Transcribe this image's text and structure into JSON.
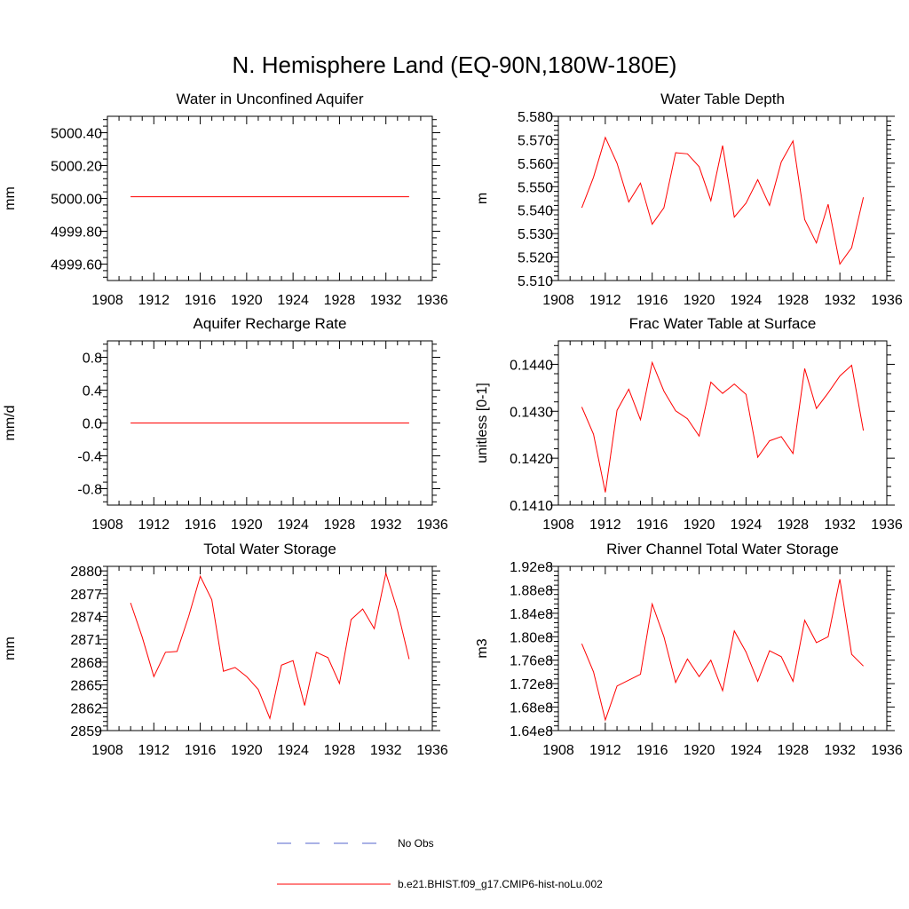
{
  "figure_title": "N. Hemisphere Land (EQ-90N,180W-180E)",
  "legend": {
    "entries": [
      {
        "label": "No Obs",
        "color": "#5566cc",
        "style": "dashed"
      },
      {
        "label": "b.e21.BHIST.f09_g17.CMIP6-hist-noLu.002",
        "color": "#ff0000",
        "style": "solid"
      }
    ]
  },
  "chart_data": [
    {
      "type": "line",
      "title": "Water in Unconfined Aquifer",
      "ylabel": "mm",
      "xlim": [
        1908,
        1936
      ],
      "ylim": [
        4999.5,
        5000.5
      ],
      "xticks": [
        1908,
        1912,
        1916,
        1920,
        1924,
        1928,
        1932,
        1936
      ],
      "xtick_labels": [
        "1908",
        "1912",
        "1916",
        "1920",
        "1924",
        "1928",
        "1932",
        "1936"
      ],
      "yticks": [
        4999.6,
        4999.8,
        5000.0,
        5000.2,
        5000.4
      ],
      "ytick_labels": [
        "4999.60",
        "4999.80",
        "5000.00",
        "5000.20",
        "5000.40"
      ],
      "series": [
        {
          "color": "#ff0000",
          "x": [
            1910,
            1934
          ],
          "y": [
            5000.01,
            5000.01
          ]
        }
      ]
    },
    {
      "type": "line",
      "title": "Water Table Depth",
      "ylabel": "m",
      "xlim": [
        1908,
        1936
      ],
      "ylim": [
        5.51,
        5.58
      ],
      "xticks": [
        1908,
        1912,
        1916,
        1920,
        1924,
        1928,
        1932,
        1936
      ],
      "xtick_labels": [
        "1908",
        "1912",
        "1916",
        "1920",
        "1924",
        "1928",
        "1932",
        "1936"
      ],
      "yticks": [
        5.51,
        5.52,
        5.53,
        5.54,
        5.55,
        5.56,
        5.57,
        5.58
      ],
      "ytick_labels": [
        "5.510",
        "5.520",
        "5.530",
        "5.540",
        "5.550",
        "5.560",
        "5.570",
        "5.580"
      ],
      "series": [
        {
          "color": "#ff0000",
          "x": [
            1910,
            1911,
            1912,
            1913,
            1914,
            1915,
            1916,
            1917,
            1918,
            1919,
            1920,
            1921,
            1922,
            1923,
            1924,
            1925,
            1926,
            1927,
            1928,
            1929,
            1930,
            1931,
            1932,
            1933,
            1934
          ],
          "y": [
            5.541,
            5.554,
            5.571,
            5.56,
            5.5435,
            5.5515,
            5.534,
            5.541,
            5.5645,
            5.564,
            5.5585,
            5.544,
            5.5675,
            5.537,
            5.543,
            5.553,
            5.542,
            5.5605,
            5.5695,
            5.536,
            5.526,
            5.5425,
            5.517,
            5.524,
            5.5455
          ]
        }
      ]
    },
    {
      "type": "line",
      "title": "Aquifer Recharge Rate",
      "ylabel": "mm/d",
      "xlim": [
        1908,
        1936
      ],
      "ylim": [
        -1.0,
        1.0
      ],
      "xticks": [
        1908,
        1912,
        1916,
        1920,
        1924,
        1928,
        1932,
        1936
      ],
      "xtick_labels": [
        "1908",
        "1912",
        "1916",
        "1920",
        "1924",
        "1928",
        "1932",
        "1936"
      ],
      "yticks": [
        -0.8,
        -0.4,
        0.0,
        0.4,
        0.8
      ],
      "ytick_labels": [
        "-0.8",
        "-0.4",
        "0.0",
        "0.4",
        "0.8"
      ],
      "series": [
        {
          "color": "#ff0000",
          "x": [
            1910,
            1934
          ],
          "y": [
            0.0,
            0.0
          ]
        }
      ]
    },
    {
      "type": "line",
      "title": "Frac Water Table at Surface",
      "ylabel": "unitless [0-1]",
      "xlim": [
        1908,
        1936
      ],
      "ylim": [
        0.141,
        0.1445
      ],
      "xticks": [
        1908,
        1912,
        1916,
        1920,
        1924,
        1928,
        1932,
        1936
      ],
      "xtick_labels": [
        "1908",
        "1912",
        "1916",
        "1920",
        "1924",
        "1928",
        "1932",
        "1936"
      ],
      "yticks": [
        0.141,
        0.142,
        0.143,
        0.144
      ],
      "ytick_labels": [
        "0.1410",
        "0.1420",
        "0.1430",
        "0.1440"
      ],
      "series": [
        {
          "color": "#ff0000",
          "x": [
            1910,
            1911,
            1912,
            1913,
            1914,
            1915,
            1916,
            1917,
            1918,
            1919,
            1920,
            1921,
            1922,
            1923,
            1924,
            1925,
            1926,
            1927,
            1928,
            1929,
            1930,
            1931,
            1932,
            1933,
            1934
          ],
          "y": [
            0.14309,
            0.14251,
            0.14127,
            0.14302,
            0.14347,
            0.14282,
            0.14404,
            0.14343,
            0.14301,
            0.14284,
            0.14247,
            0.14362,
            0.14338,
            0.14358,
            0.14336,
            0.14202,
            0.14237,
            0.14246,
            0.1421,
            0.14391,
            0.14306,
            0.14339,
            0.14375,
            0.14398,
            0.14259
          ]
        }
      ]
    },
    {
      "type": "line",
      "title": "Total Water Storage",
      "ylabel": "mm",
      "xlim": [
        1908,
        1936
      ],
      "ylim": [
        2859,
        2880.6
      ],
      "xticks": [
        1908,
        1912,
        1916,
        1920,
        1924,
        1928,
        1932,
        1936
      ],
      "xtick_labels": [
        "1908",
        "1912",
        "1916",
        "1920",
        "1924",
        "1928",
        "1932",
        "1936"
      ],
      "yticks": [
        2859,
        2862,
        2865,
        2868,
        2871,
        2874,
        2877,
        2880
      ],
      "ytick_labels": [
        "2859",
        "2862",
        "2865",
        "2868",
        "2871",
        "2874",
        "2877",
        "2880"
      ],
      "series": [
        {
          "color": "#ff0000",
          "x": [
            1910,
            1911,
            1912,
            1913,
            1914,
            1915,
            1916,
            1917,
            1918,
            1919,
            1920,
            1921,
            1922,
            1923,
            1924,
            1925,
            1926,
            1927,
            1928,
            1929,
            1930,
            1931,
            1932,
            1933,
            1934
          ],
          "y": [
            2875.8,
            2871.3,
            2866.1,
            2869.3,
            2869.4,
            2874.0,
            2879.3,
            2876.2,
            2866.8,
            2867.3,
            2866.1,
            2864.4,
            2860.6,
            2867.6,
            2868.2,
            2862.3,
            2869.3,
            2868.6,
            2865.2,
            2873.6,
            2875.0,
            2872.4,
            2879.7,
            2874.8,
            2868.4
          ]
        }
      ]
    },
    {
      "type": "line",
      "title": "River Channel Total Water Storage",
      "ylabel": "m3",
      "xlim": [
        1908,
        1936
      ],
      "ylim": [
        164000000,
        192000000
      ],
      "xticks": [
        1908,
        1912,
        1916,
        1920,
        1924,
        1928,
        1932,
        1936
      ],
      "xtick_labels": [
        "1908",
        "1912",
        "1916",
        "1920",
        "1924",
        "1928",
        "1932",
        "1936"
      ],
      "yticks": [
        164000000,
        168000000,
        172000000,
        176000000,
        180000000,
        184000000,
        188000000,
        192000000
      ],
      "ytick_labels": [
        "1.64e8",
        "1.68e8",
        "1.72e8",
        "1.76e8",
        "1.80e8",
        "1.84e8",
        "1.88e8",
        "1.92e8"
      ],
      "series": [
        {
          "color": "#ff0000",
          "x": [
            1910,
            1911,
            1912,
            1913,
            1914,
            1915,
            1916,
            1917,
            1918,
            1919,
            1920,
            1921,
            1922,
            1923,
            1924,
            1925,
            1926,
            1927,
            1928,
            1929,
            1930,
            1931,
            1932,
            1933,
            1934
          ],
          "y": [
            178800000,
            174000000,
            165800000,
            171600000,
            172600000,
            173600000,
            185600000,
            180000000,
            172200000,
            176200000,
            173200000,
            176000000,
            170800000,
            181000000,
            177400000,
            172400000,
            177600000,
            176600000,
            172400000,
            182800000,
            179000000,
            180000000,
            189800000,
            177000000,
            175000000
          ]
        }
      ]
    }
  ]
}
